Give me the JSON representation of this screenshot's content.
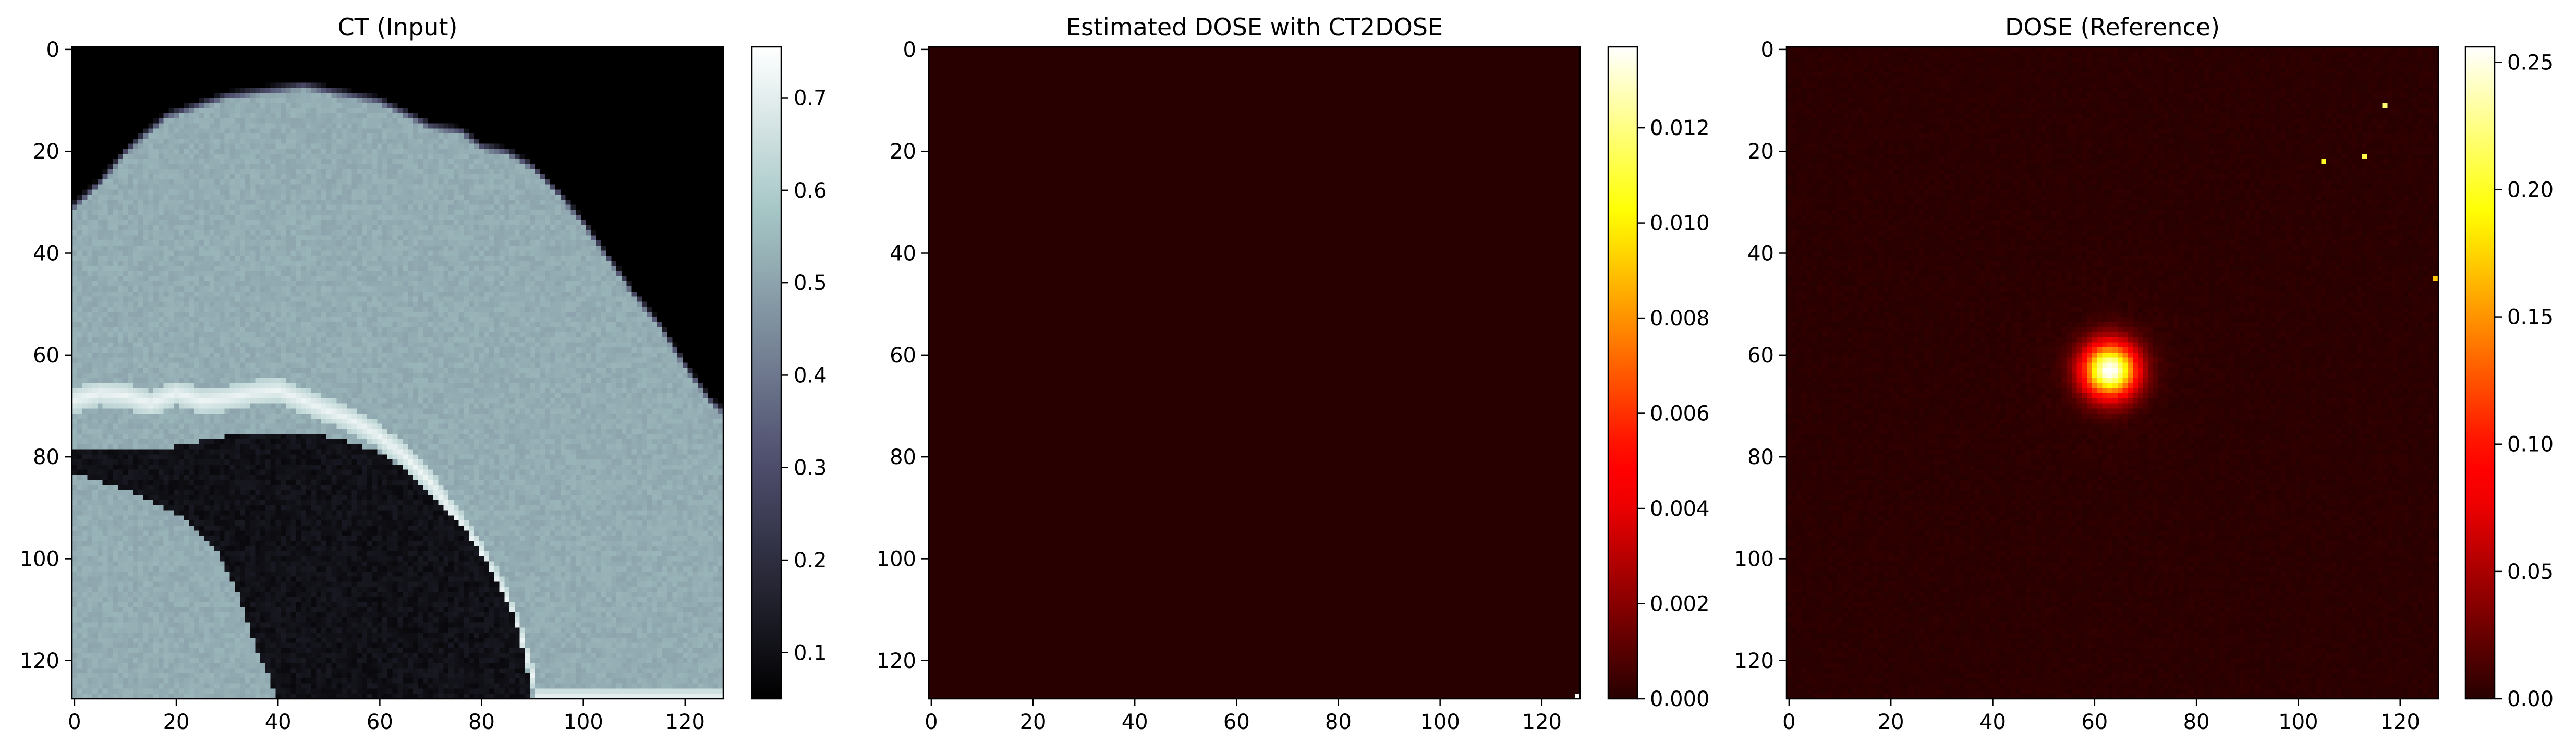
{
  "chart_data": [
    {
      "type": "heatmap",
      "title": "CT (Input)",
      "colormap": "bone",
      "xlim": [
        -0.5,
        127.5
      ],
      "ylim": [
        127.5,
        -0.5
      ],
      "xticks": [
        0,
        20,
        40,
        60,
        80,
        100,
        120
      ],
      "yticks": [
        0,
        20,
        40,
        60,
        80,
        100,
        120
      ],
      "colorbar": {
        "min": 0.05,
        "max": 0.755,
        "ticks": [
          0.1,
          0.2,
          0.3,
          0.4,
          0.5,
          0.6,
          0.7
        ],
        "labels": [
          "0.1",
          "0.2",
          "0.3",
          "0.4",
          "0.5",
          "0.6",
          "0.7"
        ]
      },
      "features": {
        "background_level": 0.05,
        "soft_tissue_level": 0.52,
        "bone_level": 0.72,
        "lung_level": 0.08,
        "soft_tissue_upper_boundary": [
          [
            -0.5,
            30
          ],
          [
            5,
            25
          ],
          [
            10,
            19
          ],
          [
            18,
            12
          ],
          [
            30,
            8
          ],
          [
            45,
            6
          ],
          [
            60,
            9
          ],
          [
            70,
            14
          ],
          [
            76,
            15
          ],
          [
            80,
            18
          ],
          [
            85,
            19
          ],
          [
            90,
            22
          ],
          [
            95,
            27
          ],
          [
            100,
            33
          ],
          [
            105,
            40
          ],
          [
            110,
            47
          ],
          [
            115,
            53
          ],
          [
            120,
            61
          ],
          [
            125,
            68
          ],
          [
            127.5,
            70
          ]
        ],
        "bone_band_centerline": [
          [
            -0.5,
            69
          ],
          [
            5,
            67.5
          ],
          [
            10,
            68
          ],
          [
            15,
            69.5
          ],
          [
            20,
            67.5
          ],
          [
            25,
            69
          ],
          [
            30,
            68.5
          ],
          [
            35,
            67.5
          ],
          [
            40,
            67
          ],
          [
            45,
            69
          ],
          [
            50,
            71
          ],
          [
            55,
            73
          ],
          [
            60,
            76
          ],
          [
            65,
            80
          ],
          [
            70,
            85
          ],
          [
            75,
            92
          ],
          [
            80,
            99
          ],
          [
            85,
            108
          ],
          [
            88,
            116
          ],
          [
            90,
            123
          ],
          [
            91,
            127.5
          ]
        ],
        "lung_region": [
          [
            -0.5,
            79
          ],
          [
            10,
            79
          ],
          [
            20,
            78
          ],
          [
            30,
            76
          ],
          [
            40,
            75
          ],
          [
            50,
            76
          ],
          [
            60,
            79
          ],
          [
            66,
            83
          ],
          [
            72,
            89
          ],
          [
            78,
            96
          ],
          [
            83,
            104
          ],
          [
            87,
            113
          ],
          [
            89,
            122
          ],
          [
            90,
            127.5
          ],
          [
            40,
            127.5
          ],
          [
            36,
            118
          ],
          [
            32,
            106
          ],
          [
            28,
            98
          ],
          [
            22,
            92
          ],
          [
            14,
            88
          ],
          [
            6,
            85
          ],
          [
            -0.5,
            83
          ]
        ]
      }
    },
    {
      "type": "heatmap",
      "title": "Estimated DOSE with CT2DOSE",
      "colormap": "hot",
      "xlim": [
        -0.5,
        127.5
      ],
      "ylim": [
        127.5,
        -0.5
      ],
      "xticks": [
        0,
        20,
        40,
        60,
        80,
        100,
        120
      ],
      "yticks": [
        0,
        20,
        40,
        60,
        80,
        100,
        120
      ],
      "colorbar": {
        "min": 0,
        "max": 0.0137,
        "ticks": [
          0,
          0.002,
          0.004,
          0.006,
          0.008,
          0.01,
          0.012
        ],
        "labels": [
          "0.000",
          "0.002",
          "0.004",
          "0.006",
          "0.008",
          "0.010",
          "0.012"
        ]
      },
      "features": {
        "background_level": 5e-05,
        "hot_pixels": [
          [
            127,
            127,
            0.0137
          ]
        ]
      }
    },
    {
      "type": "heatmap",
      "title": "DOSE (Reference)",
      "colormap": "hot",
      "xlim": [
        -0.5,
        127.5
      ],
      "ylim": [
        127.5,
        -0.5
      ],
      "xticks": [
        0,
        20,
        40,
        60,
        80,
        100,
        120
      ],
      "yticks": [
        0,
        20,
        40,
        60,
        80,
        100,
        120
      ],
      "colorbar": {
        "min": 0,
        "max": 0.256,
        "ticks": [
          0,
          0.05,
          0.1,
          0.15,
          0.2,
          0.25
        ],
        "labels": [
          "0.00",
          "0.05",
          "0.10",
          "0.15",
          "0.20",
          "0.25"
        ]
      },
      "features": {
        "background_level": 0.002,
        "hotspot": {
          "x": 63,
          "y": 63,
          "peak": 0.255,
          "radius": 5
        },
        "hot_pixels": [
          [
            117,
            11,
            0.22
          ],
          [
            113,
            21,
            0.21
          ],
          [
            105,
            22,
            0.2
          ],
          [
            127,
            45,
            0.17
          ]
        ]
      }
    }
  ]
}
